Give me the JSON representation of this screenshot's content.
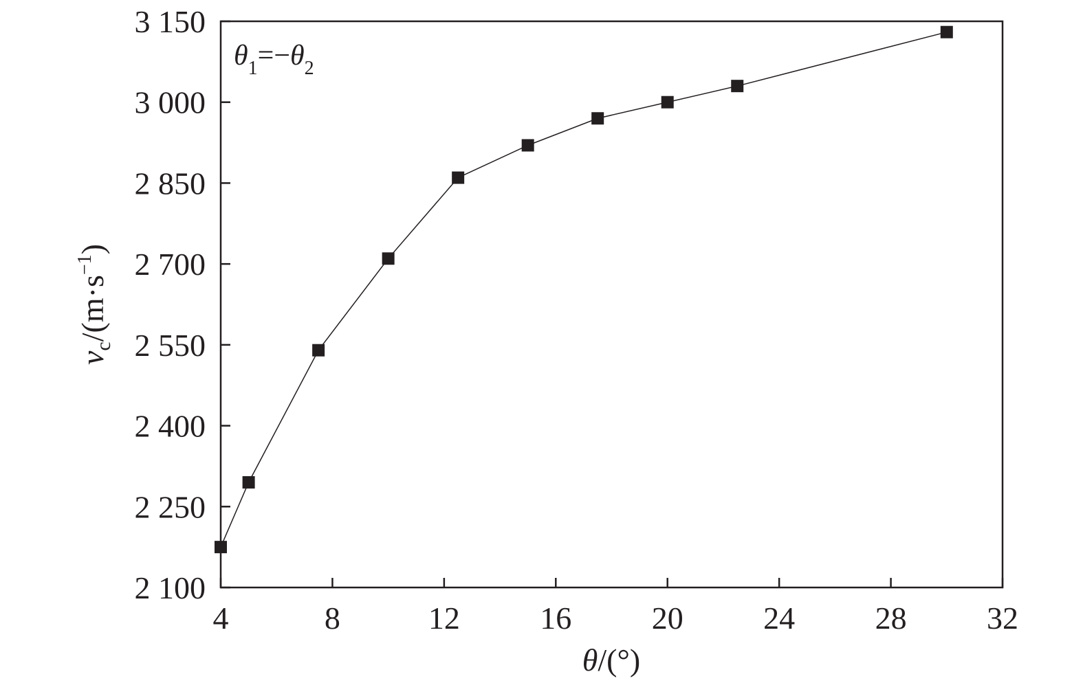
{
  "chart_data": {
    "type": "line",
    "marker": "square",
    "x": [
      4,
      5,
      7.5,
      10,
      12.5,
      15,
      17.5,
      20,
      22.5,
      30
    ],
    "series": [
      {
        "values": [
          2175,
          2295,
          2540,
          2710,
          2860,
          2920,
          2970,
          3000,
          3030,
          3130
        ]
      }
    ],
    "xlim": [
      4,
      32
    ],
    "ylim": [
      2100,
      3150
    ],
    "x_ticks": [
      {
        "value": 4,
        "label": "4"
      },
      {
        "value": 8,
        "label": "8"
      },
      {
        "value": 12,
        "label": "12"
      },
      {
        "value": 16,
        "label": "16"
      },
      {
        "value": 20,
        "label": "20"
      },
      {
        "value": 24,
        "label": "24"
      },
      {
        "value": 28,
        "label": "28"
      },
      {
        "value": 32,
        "label": "32"
      }
    ],
    "y_ticks": [
      {
        "value": 2100,
        "label": "2 100"
      },
      {
        "value": 2250,
        "label": "2 250"
      },
      {
        "value": 2400,
        "label": "2 400"
      },
      {
        "value": 2550,
        "label": "2 550"
      },
      {
        "value": 2700,
        "label": "2 700"
      },
      {
        "value": 2850,
        "label": "2 850"
      },
      {
        "value": 3000,
        "label": "3 000"
      },
      {
        "value": 3150,
        "label": "3 150"
      }
    ],
    "xlabel": {
      "symbol": "θ",
      "unit": "/(°)"
    },
    "ylabel": {
      "symbol": "v",
      "subscript": "c",
      "unit_open": "/(m·s",
      "unit_exp": "−1",
      "unit_close": ")"
    },
    "annotation": {
      "sym1": "θ",
      "sub1": "1",
      "eq": "=−",
      "sym2": "θ",
      "sub2": "2"
    },
    "grid": false,
    "colors": {
      "line": "#231f20",
      "marker": "#231f20",
      "axis": "#231f20"
    }
  }
}
